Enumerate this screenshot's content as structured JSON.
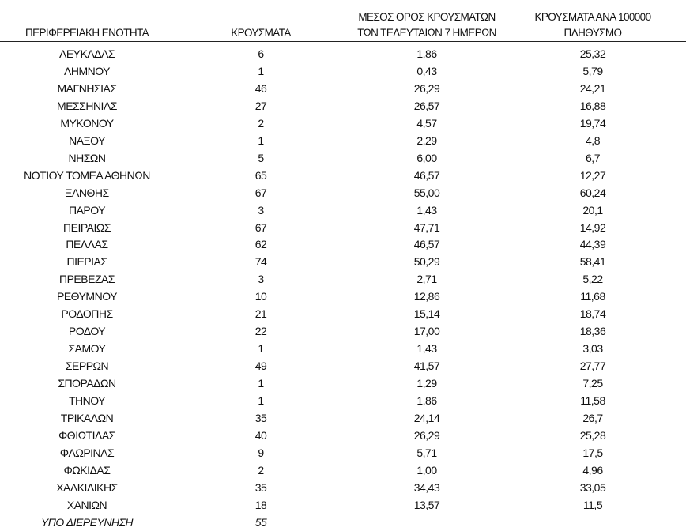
{
  "headers": {
    "region": "ΠΕΡΙΦΕΡΕΙΑΚΗ ΕΝΟΤΗΤΑ",
    "cases": "ΚΡΟΥΣΜΑΤΑ",
    "avg7_line1": "ΜΕΣΟΣ ΟΡΟΣ ΚΡΟΥΣΜΑΤΩΝ",
    "avg7_line2": "ΤΩΝ ΤΕΛΕΥΤΑΙΩΝ 7 ΗΜΕΡΩΝ",
    "per100k_line1": "ΚΡΟΥΣΜΑΤΑ ΑΝΑ 100000",
    "per100k_line2": "ΠΛΗΘΥΣΜΟ"
  },
  "rows": [
    [
      "ΛΕΥΚΑΔΑΣ",
      "6",
      "1,86",
      "25,32"
    ],
    [
      "ΛΗΜΝΟΥ",
      "1",
      "0,43",
      "5,79"
    ],
    [
      "ΜΑΓΝΗΣΙΑΣ",
      "46",
      "26,29",
      "24,21"
    ],
    [
      "ΜΕΣΣΗΝΙΑΣ",
      "27",
      "26,57",
      "16,88"
    ],
    [
      "ΜΥΚΟΝΟΥ",
      "2",
      "4,57",
      "19,74"
    ],
    [
      "ΝΑΞΟΥ",
      "1",
      "2,29",
      "4,8"
    ],
    [
      "ΝΗΣΩΝ",
      "5",
      "6,00",
      "6,7"
    ],
    [
      "ΝΟΤΙΟΥ ΤΟΜΕΑ ΑΘΗΝΩΝ",
      "65",
      "46,57",
      "12,27"
    ],
    [
      "ΞΑΝΘΗΣ",
      "67",
      "55,00",
      "60,24"
    ],
    [
      "ΠΑΡΟΥ",
      "3",
      "1,43",
      "20,1"
    ],
    [
      "ΠΕΙΡΑΙΩΣ",
      "67",
      "47,71",
      "14,92"
    ],
    [
      "ΠΕΛΛΑΣ",
      "62",
      "46,57",
      "44,39"
    ],
    [
      "ΠΙΕΡΙΑΣ",
      "74",
      "50,29",
      "58,41"
    ],
    [
      "ΠΡΕΒΕΖΑΣ",
      "3",
      "2,71",
      "5,22"
    ],
    [
      "ΡΕΘΥΜΝΟΥ",
      "10",
      "12,86",
      "11,68"
    ],
    [
      "ΡΟΔΟΠΗΣ",
      "21",
      "15,14",
      "18,74"
    ],
    [
      "ΡΟΔΟΥ",
      "22",
      "17,00",
      "18,36"
    ],
    [
      "ΣΑΜΟΥ",
      "1",
      "1,43",
      "3,03"
    ],
    [
      "ΣΕΡΡΩΝ",
      "49",
      "41,57",
      "27,77"
    ],
    [
      "ΣΠΟΡΑΔΩΝ",
      "1",
      "1,29",
      "7,25"
    ],
    [
      "ΤΗΝΟΥ",
      "1",
      "1,86",
      "11,58"
    ],
    [
      "ΤΡΙΚΑΛΩΝ",
      "35",
      "24,14",
      "26,7"
    ],
    [
      "ΦΘΙΩΤΙΔΑΣ",
      "40",
      "26,29",
      "25,28"
    ],
    [
      "ΦΛΩΡΙΝΑΣ",
      "9",
      "5,71",
      "17,5"
    ],
    [
      "ΦΩΚΙΔΑΣ",
      "2",
      "1,00",
      "4,96"
    ],
    [
      "ΧΑΛΚΙΔΙΚΗΣ",
      "35",
      "34,43",
      "33,05"
    ],
    [
      "ΧΑΝΙΩΝ",
      "18",
      "13,57",
      "11,5"
    ]
  ],
  "under_investigation": {
    "label": "ΥΠΟ ΔΙΕΡΕΥΝΗΣΗ",
    "cases": "55"
  }
}
